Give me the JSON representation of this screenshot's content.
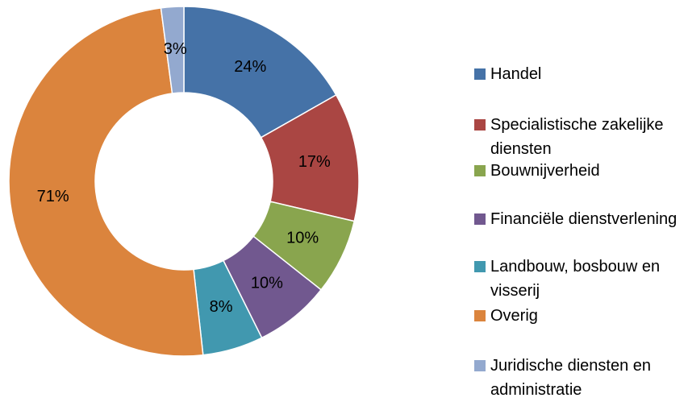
{
  "chart_data": {
    "type": "donut",
    "categories": [
      "Handel",
      "Specialistische zakelijke diensten",
      "Bouwnijverheid",
      "Financiële dienstverlening",
      "Landbouw, bosbouw en visserij",
      "Overig",
      "Juridische diensten en administratie"
    ],
    "values": [
      24,
      17,
      10,
      10,
      8,
      71,
      3
    ],
    "value_labels": [
      "24%",
      "17%",
      "10%",
      "10%",
      "8%",
      "71%",
      "3%"
    ],
    "colors": [
      "#4572a7",
      "#aa4643",
      "#89a54e",
      "#71588f",
      "#4198af",
      "#db843d",
      "#93a9cf"
    ],
    "legend": "right"
  }
}
